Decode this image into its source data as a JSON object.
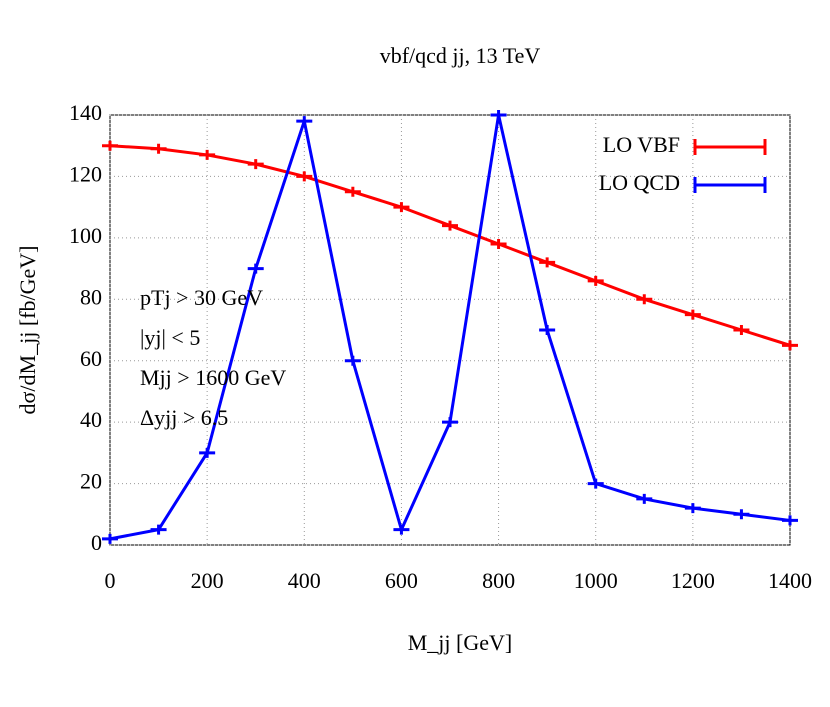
{
  "chart_data": {
    "type": "line",
    "title": "vbf/qcd jj, 13 TeV",
    "x_label": "M_jj [GeV]",
    "y_label": "dσ/dM_jj [fb/GeV]",
    "x": [
      0,
      100,
      200,
      300,
      400,
      500,
      600,
      700,
      800,
      900,
      1000,
      1100,
      1200,
      1300,
      1400
    ],
    "series": [
      {
        "name": "LO VBF",
        "color": "#ff0000",
        "values": [
          130,
          129,
          127,
          124,
          120,
          115,
          110,
          104,
          98,
          92,
          86,
          80,
          75,
          70,
          65
        ]
      },
      {
        "name": "LO QCD",
        "color": "#0000ff",
        "values": [
          2,
          5,
          30,
          90,
          138,
          60,
          5,
          40,
          140,
          70,
          20,
          15,
          12,
          10,
          8
        ]
      }
    ],
    "xlim": [
      0,
      1400
    ],
    "xticks": [
      0,
      200,
      400,
      600,
      800,
      1000,
      1200,
      1400
    ],
    "ylim": [
      0,
      140
    ],
    "yticks": [
      0,
      20,
      40,
      60,
      80,
      100,
      120,
      140
    ],
    "grid": true,
    "legend": "top-right",
    "annotations": [
      "pTj > 30 GeV",
      "|yj| < 5",
      "Mjj > 1600 GeV",
      "Δyjj > 6.5"
    ]
  }
}
